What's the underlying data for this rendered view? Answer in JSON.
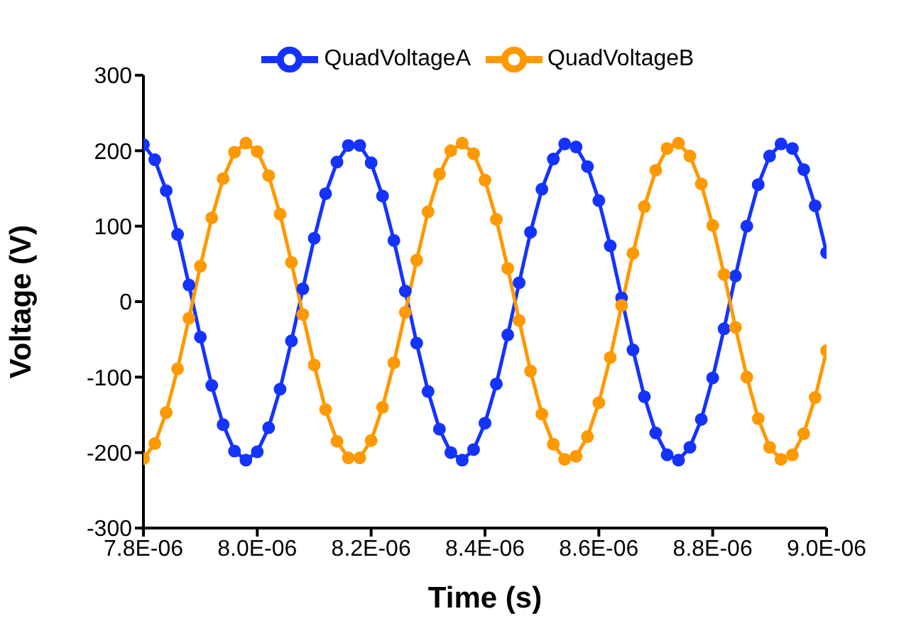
{
  "chart_data": {
    "type": "line",
    "xlabel": "Time (s)",
    "ylabel": "Voltage (V)",
    "x": [
      7.8e-06,
      7.82e-06,
      7.84e-06,
      7.86e-06,
      7.88e-06,
      7.9e-06,
      7.92e-06,
      7.94e-06,
      7.96e-06,
      7.98e-06,
      8e-06,
      8.02e-06,
      8.04e-06,
      8.06e-06,
      8.08e-06,
      8.1e-06,
      8.12e-06,
      8.14e-06,
      8.16e-06,
      8.18e-06,
      8.2e-06,
      8.22e-06,
      8.24e-06,
      8.26e-06,
      8.28e-06,
      8.3e-06,
      8.32e-06,
      8.34e-06,
      8.36e-06,
      8.38e-06,
      8.4e-06,
      8.42e-06,
      8.44e-06,
      8.46e-06,
      8.48e-06,
      8.5e-06,
      8.52e-06,
      8.54e-06,
      8.56e-06,
      8.58e-06,
      8.6e-06,
      8.62e-06,
      8.64e-06,
      8.66e-06,
      8.68e-06,
      8.7e-06,
      8.72e-06,
      8.74e-06,
      8.76e-06,
      8.78e-06,
      8.8e-06,
      8.82e-06,
      8.84e-06,
      8.86e-06,
      8.88e-06,
      8.9e-06,
      8.92e-06,
      8.94e-06,
      8.96e-06,
      8.98e-06,
      9e-06
    ],
    "series": [
      {
        "name": "QuadVoltageA",
        "color": "#1433ff",
        "values": [
          208,
          188,
          147,
          89,
          22,
          -47,
          -111,
          -163,
          -198,
          -210,
          -199,
          -167,
          -116,
          -52,
          17,
          84,
          143,
          185,
          207,
          207,
          184,
          140,
          81,
          14,
          -55,
          -119,
          -169,
          -200,
          -210,
          -196,
          -161,
          -109,
          -44,
          25,
          92,
          149,
          189,
          209,
          205,
          179,
          134,
          74,
          5,
          -64,
          -126,
          -174,
          -203,
          -210,
          -193,
          -156,
          -101,
          -36,
          34,
          100,
          155,
          193,
          209,
          203,
          175,
          127,
          65
        ]
      },
      {
        "name": "QuadVoltageB",
        "color": "#ff9900",
        "values": [
          -208,
          -188,
          -147,
          -89,
          -22,
          47,
          111,
          163,
          198,
          210,
          199,
          167,
          116,
          52,
          -17,
          -84,
          -143,
          -185,
          -207,
          -207,
          -184,
          -140,
          -81,
          -14,
          55,
          119,
          169,
          200,
          210,
          196,
          161,
          109,
          44,
          -25,
          -92,
          -149,
          -189,
          -209,
          -205,
          -179,
          -134,
          -74,
          -5,
          64,
          126,
          174,
          203,
          210,
          193,
          156,
          101,
          36,
          -34,
          -100,
          -155,
          -193,
          -209,
          -203,
          -175,
          -127,
          -65
        ]
      }
    ],
    "xlim": [
      7.8e-06,
      9e-06
    ],
    "xticks": [
      {
        "value": 7.8e-06,
        "label": "7.8E-06"
      },
      {
        "value": 8e-06,
        "label": "8.0E-06"
      },
      {
        "value": 8.2e-06,
        "label": "8.2E-06"
      },
      {
        "value": 8.4e-06,
        "label": "8.4E-06"
      },
      {
        "value": 8.6e-06,
        "label": "8.6E-06"
      },
      {
        "value": 8.8e-06,
        "label": "8.8E-06"
      },
      {
        "value": 9e-06,
        "label": "9.0E-06"
      }
    ],
    "ylim": [
      -300,
      300
    ],
    "yticks": [
      -300,
      -200,
      -100,
      0,
      100,
      200,
      300
    ],
    "grid": false,
    "legend": "top",
    "marker": "circle",
    "line_style": "solid"
  }
}
